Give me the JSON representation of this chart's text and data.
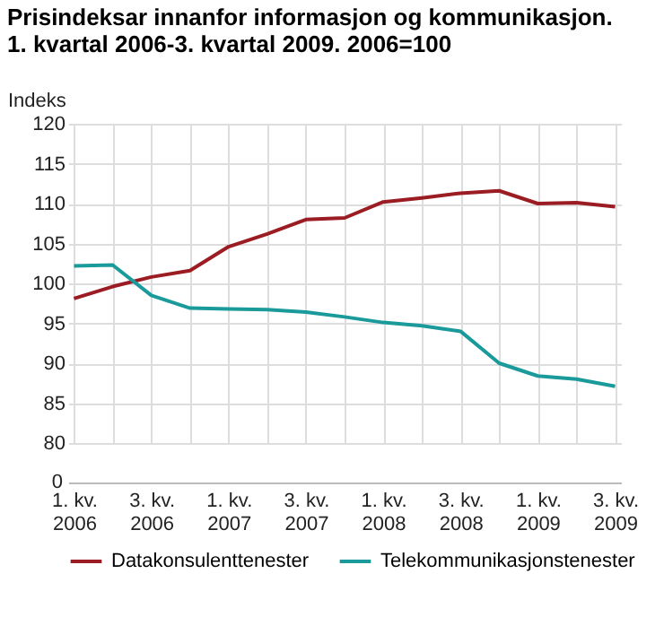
{
  "chart_data": {
    "type": "line",
    "title": "Prisindeksar innanfor informasjon og kommunikasjon. 1. kvartal 2006-3. kvartal 2009. 2006=100",
    "ylabel": "Indeks",
    "categories": [
      "1. kv.\n2006",
      null,
      "3. kv.\n2006",
      null,
      "1. kv.\n2007",
      null,
      "3. kv.\n2007",
      null,
      "1. kv.\n2008",
      null,
      "3. kv.\n2008",
      null,
      "1. kv.\n2009",
      null,
      "3. kv.\n2009"
    ],
    "series": [
      {
        "name": "Datakonsulenttenester",
        "color": "#9b1c22",
        "values": [
          98.1,
          99.6,
          100.8,
          101.6,
          104.6,
          106.2,
          108.0,
          108.2,
          110.2,
          110.7,
          111.3,
          111.6,
          110.0,
          110.1,
          109.6
        ]
      },
      {
        "name": "Telekommunikasjonstenester",
        "color": "#1a9a9a",
        "values": [
          102.2,
          102.3,
          98.5,
          96.9,
          96.8,
          96.7,
          96.4,
          95.8,
          95.1,
          94.7,
          94.0,
          90.0,
          88.4,
          88.0,
          87.1
        ]
      }
    ],
    "ylim": [
      80,
      120
    ],
    "yticks": [
      80,
      85,
      90,
      95,
      100,
      105,
      110,
      115,
      120
    ],
    "annotations": [
      "0"
    ],
    "grid": true,
    "legend": "bottom",
    "marker": "none",
    "line_style": "solid"
  }
}
